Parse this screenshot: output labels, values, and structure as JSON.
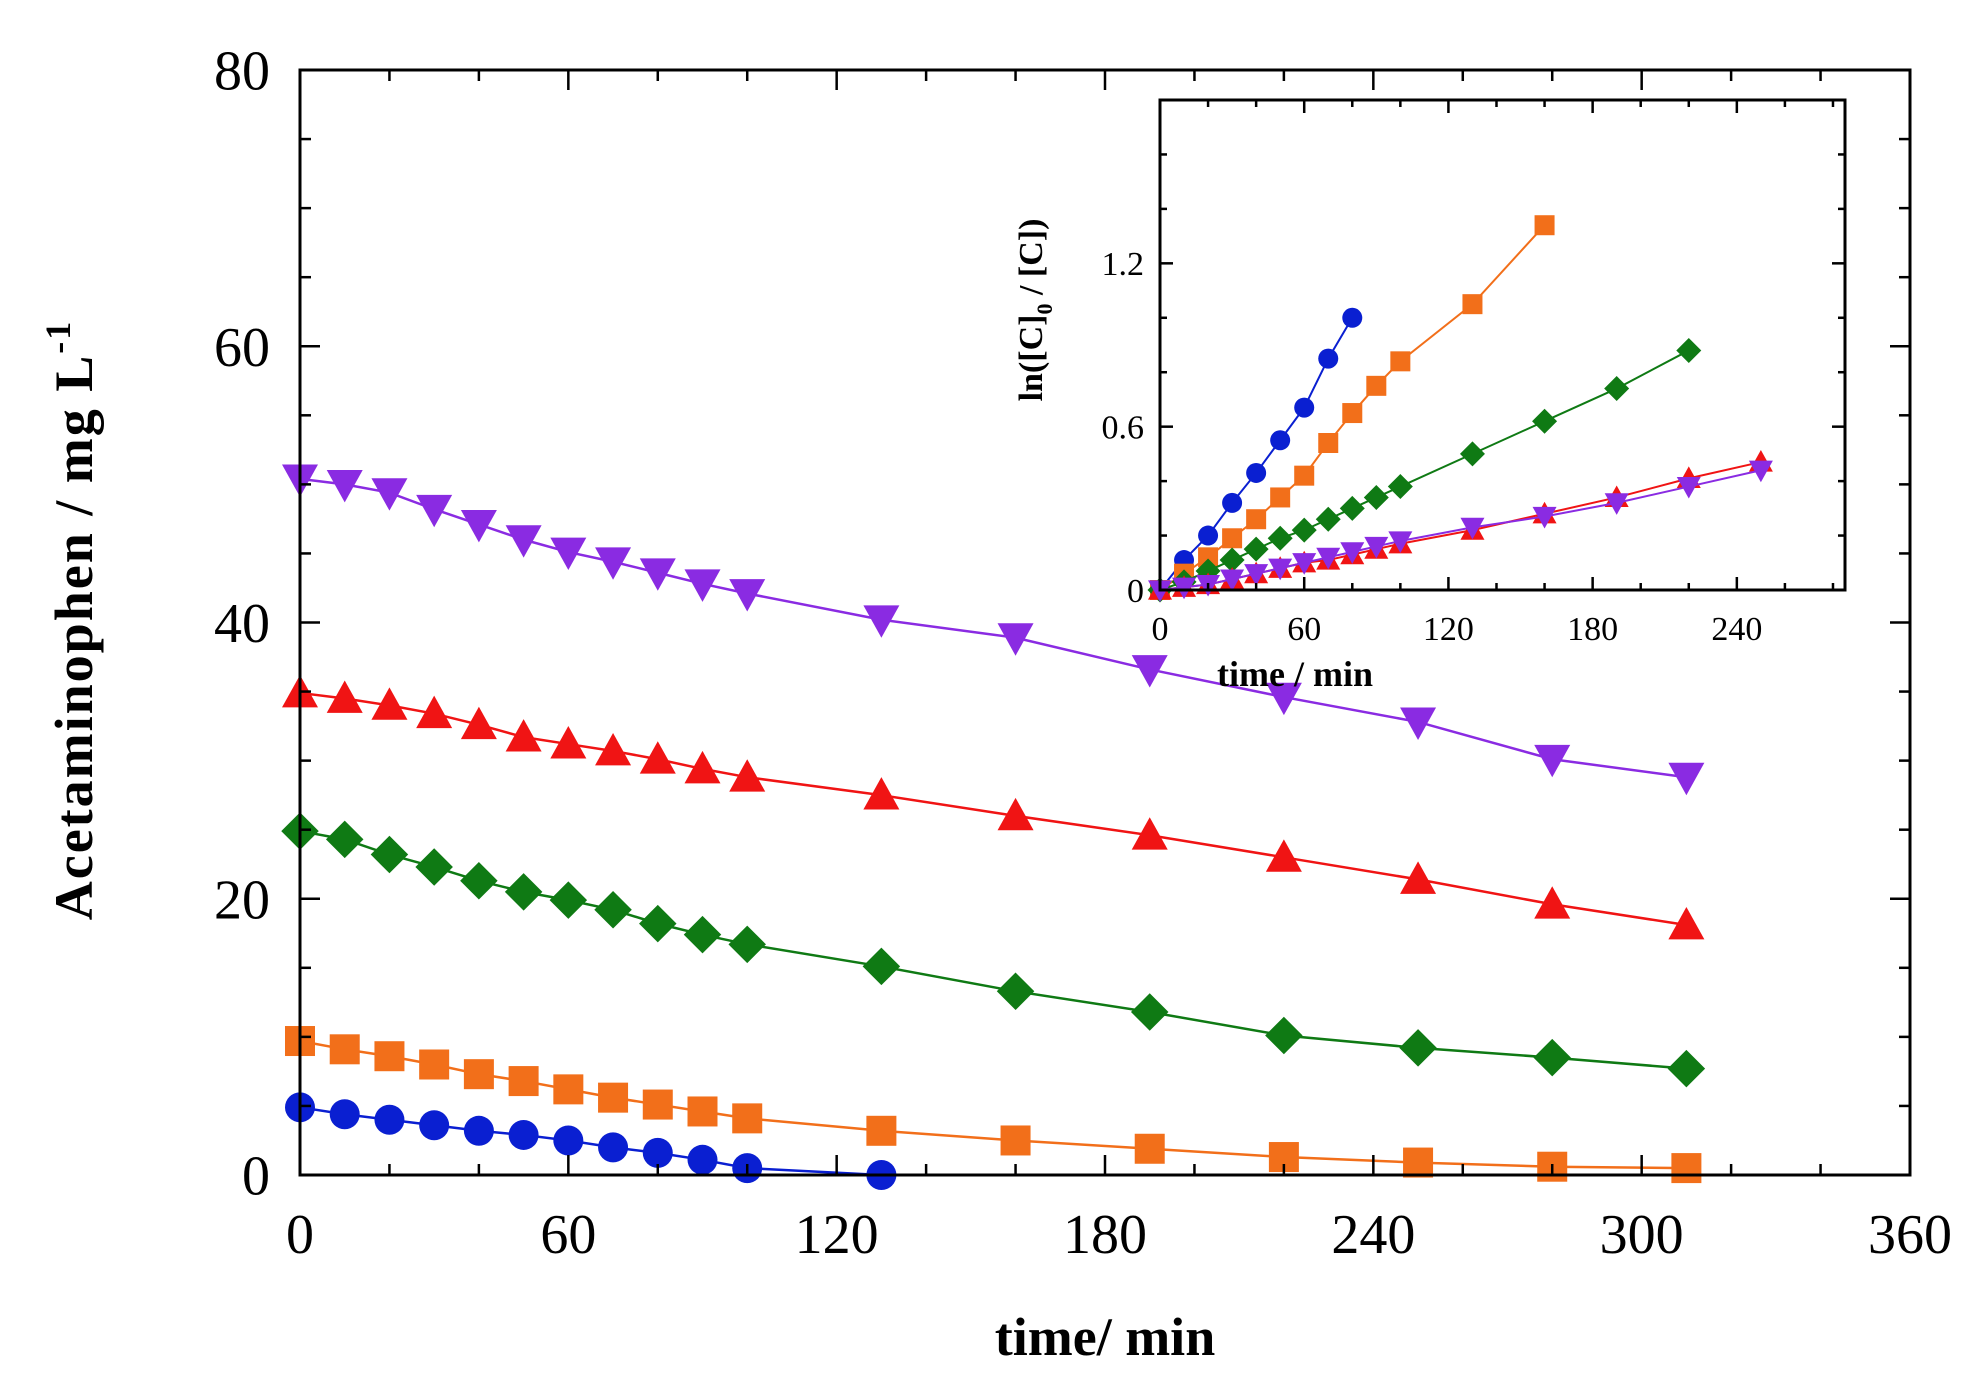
{
  "chart_data": [
    {
      "type": "line",
      "xlabel": "time/ min",
      "ylabel": "Acetaminophen / mg L",
      "ylabel_sup": "-1",
      "xlim": [
        0,
        360
      ],
      "ylim": [
        0,
        80
      ],
      "xticks": [
        "0",
        "60",
        "120",
        "180",
        "240",
        "300",
        "360"
      ],
      "yticks": [
        "0",
        "20",
        "40",
        "60",
        "80"
      ],
      "xtick_values": [
        0,
        60,
        120,
        180,
        240,
        300,
        360
      ],
      "ytick_values": [
        0,
        20,
        40,
        60,
        80
      ],
      "series": [
        {
          "name": "circle-series",
          "marker": "circle",
          "color": "#0a1fd1",
          "x": [
            0,
            10,
            20,
            30,
            40,
            50,
            60,
            70,
            80,
            90,
            100,
            130
          ],
          "y": [
            4.9,
            4.4,
            4.0,
            3.6,
            3.2,
            2.9,
            2.5,
            2.0,
            1.6,
            1.1,
            0.5,
            0
          ]
        },
        {
          "name": "square-series",
          "marker": "square",
          "color": "#f26f1a",
          "x": [
            0,
            10,
            20,
            30,
            40,
            50,
            60,
            70,
            80,
            90,
            100,
            130,
            160,
            190,
            220,
            250,
            280,
            310
          ],
          "y": [
            9.7,
            9.1,
            8.6,
            8.0,
            7.3,
            6.8,
            6.2,
            5.6,
            5.1,
            4.6,
            4.1,
            3.2,
            2.5,
            1.9,
            1.3,
            0.9,
            0.6,
            0.5
          ]
        },
        {
          "name": "diamond-series",
          "marker": "diamond",
          "color": "#0f7a14",
          "x": [
            0,
            10,
            20,
            30,
            40,
            50,
            60,
            70,
            80,
            90,
            100,
            130,
            160,
            190,
            220,
            250,
            280,
            310
          ],
          "y": [
            24.9,
            24.3,
            23.2,
            22.3,
            21.3,
            20.5,
            19.9,
            19.2,
            18.2,
            17.4,
            16.7,
            15.1,
            13.3,
            11.8,
            10.1,
            9.2,
            8.5,
            7.7
          ]
        },
        {
          "name": "triangle-up-series",
          "marker": "triangle-up",
          "color": "#f01414",
          "x": [
            0,
            10,
            20,
            30,
            40,
            50,
            60,
            70,
            80,
            90,
            100,
            130,
            160,
            190,
            220,
            250,
            280,
            310
          ],
          "y": [
            34.9,
            34.5,
            34.0,
            33.4,
            32.6,
            31.7,
            31.2,
            30.7,
            30.1,
            29.4,
            28.8,
            27.5,
            26.0,
            24.6,
            23.0,
            21.4,
            19.6,
            18.1
          ]
        },
        {
          "name": "triangle-down-series",
          "marker": "triangle-down",
          "color": "#8a2be2",
          "x": [
            0,
            10,
            20,
            30,
            40,
            50,
            60,
            70,
            80,
            90,
            100,
            130,
            160,
            190,
            220,
            250,
            280,
            310
          ],
          "y": [
            50.4,
            50.0,
            49.4,
            48.2,
            47.1,
            46.0,
            45.1,
            44.4,
            43.6,
            42.8,
            42.1,
            40.2,
            38.9,
            36.6,
            34.6,
            32.8,
            30.1,
            28.8
          ]
        }
      ]
    },
    {
      "type": "line",
      "inset": true,
      "xlabel": "time / min",
      "ylabel": "ln([C]",
      "ylabel_sub": "0",
      "ylabel_rest": " / [C])",
      "xlim": [
        0,
        285
      ],
      "ylim": [
        0,
        1.8
      ],
      "xticks": [
        "0",
        "60",
        "120",
        "180",
        "240"
      ],
      "yticks": [
        "0",
        "0.6",
        "1.2"
      ],
      "xtick_values": [
        0,
        60,
        120,
        180,
        240
      ],
      "ytick_values": [
        0,
        0.6,
        1.2
      ],
      "series": [
        {
          "name": "inset-circle-series",
          "marker": "circle",
          "color": "#0a1fd1",
          "x": [
            0,
            10,
            20,
            30,
            40,
            50,
            60,
            70,
            80
          ],
          "y": [
            0,
            0.11,
            0.2,
            0.32,
            0.43,
            0.55,
            0.67,
            0.85,
            1.0
          ]
        },
        {
          "name": "inset-square-series",
          "marker": "square",
          "color": "#f26f1a",
          "x": [
            0,
            10,
            20,
            30,
            40,
            50,
            60,
            70,
            80,
            90,
            100,
            130,
            160
          ],
          "y": [
            0,
            0.06,
            0.12,
            0.19,
            0.26,
            0.34,
            0.42,
            0.54,
            0.65,
            0.75,
            0.84,
            1.05,
            1.34
          ]
        },
        {
          "name": "inset-diamond-series",
          "marker": "diamond",
          "color": "#0f7a14",
          "x": [
            0,
            10,
            20,
            30,
            40,
            50,
            60,
            70,
            80,
            90,
            100,
            130,
            160,
            190,
            220
          ],
          "y": [
            0,
            0.03,
            0.07,
            0.11,
            0.15,
            0.19,
            0.22,
            0.26,
            0.3,
            0.34,
            0.38,
            0.5,
            0.62,
            0.74,
            0.88
          ]
        },
        {
          "name": "inset-triangle-up-series",
          "marker": "triangle-up",
          "color": "#f01414",
          "x": [
            0,
            10,
            20,
            30,
            40,
            50,
            60,
            70,
            80,
            90,
            100,
            130,
            160,
            190,
            220,
            250
          ],
          "y": [
            0,
            0.01,
            0.02,
            0.04,
            0.06,
            0.08,
            0.1,
            0.11,
            0.13,
            0.15,
            0.17,
            0.22,
            0.28,
            0.34,
            0.41,
            0.47
          ]
        },
        {
          "name": "inset-triangle-down-series",
          "marker": "triangle-down",
          "color": "#8a2be2",
          "x": [
            0,
            10,
            20,
            30,
            40,
            50,
            60,
            70,
            80,
            90,
            100,
            130,
            160,
            190,
            220,
            250
          ],
          "y": [
            0,
            0.01,
            0.02,
            0.04,
            0.06,
            0.08,
            0.1,
            0.12,
            0.14,
            0.16,
            0.18,
            0.23,
            0.27,
            0.32,
            0.38,
            0.44
          ]
        }
      ]
    }
  ]
}
